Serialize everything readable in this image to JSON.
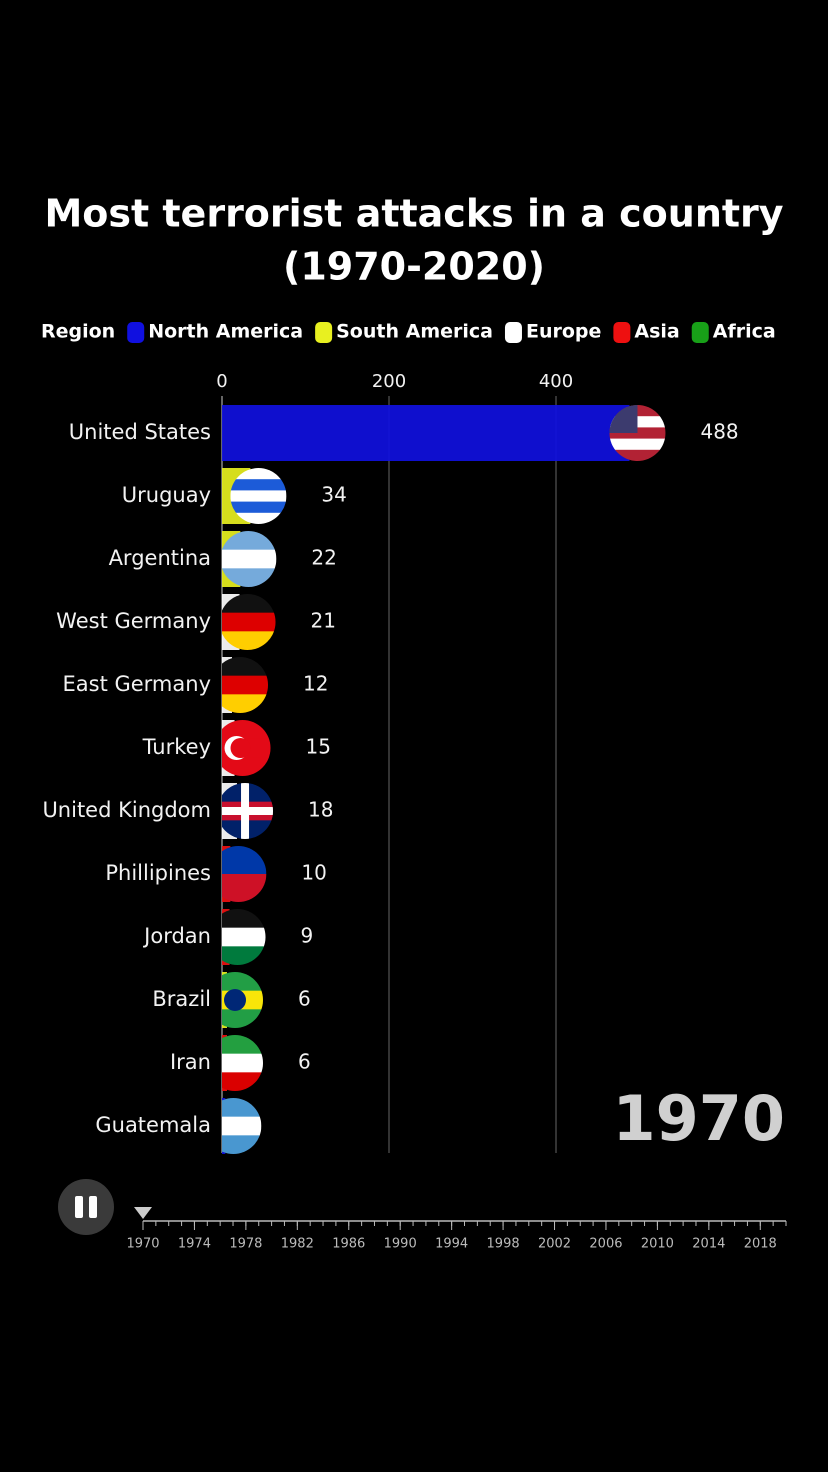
{
  "chart_data": {
    "type": "bar",
    "orientation": "horizontal",
    "title": [
      "Most terrorist attacks in a country",
      "(1970-2020)"
    ],
    "legend_title": "Region",
    "regions": [
      {
        "name": "North America",
        "color": "#1010e0"
      },
      {
        "name": "South America",
        "color": "#e8f020"
      },
      {
        "name": "Europe",
        "color": "#ffffff"
      },
      {
        "name": "Asia",
        "color": "#ee1010"
      },
      {
        "name": "Africa",
        "color": "#18a018"
      }
    ],
    "categories": [
      "United States",
      "Uruguay",
      "Argentina",
      "West Germany",
      "East Germany",
      "Turkey",
      "United Kingdom",
      "Phillipines",
      "Jordan",
      "Brazil",
      "Iran",
      "Guatemala"
    ],
    "values": [
      488,
      34,
      22,
      21,
      12,
      15,
      18,
      10,
      9,
      6,
      6,
      4
    ],
    "value_labels": [
      "488",
      "34",
      "22",
      "21",
      "12",
      "15",
      "18",
      "10",
      "9",
      "6",
      "6",
      null
    ],
    "bar_region": [
      0,
      1,
      1,
      2,
      2,
      2,
      2,
      3,
      3,
      1,
      3,
      0
    ],
    "xlim": [
      0,
      500
    ],
    "xticks": [
      0,
      200,
      400
    ],
    "grid": true,
    "year": "1970",
    "timeline": {
      "xlim": [
        1970,
        2020
      ],
      "ticks": [
        1970,
        1974,
        1978,
        1982,
        1986,
        1990,
        1994,
        1998,
        2002,
        2006,
        2010,
        2014,
        2018
      ],
      "current": 1970
    }
  }
}
